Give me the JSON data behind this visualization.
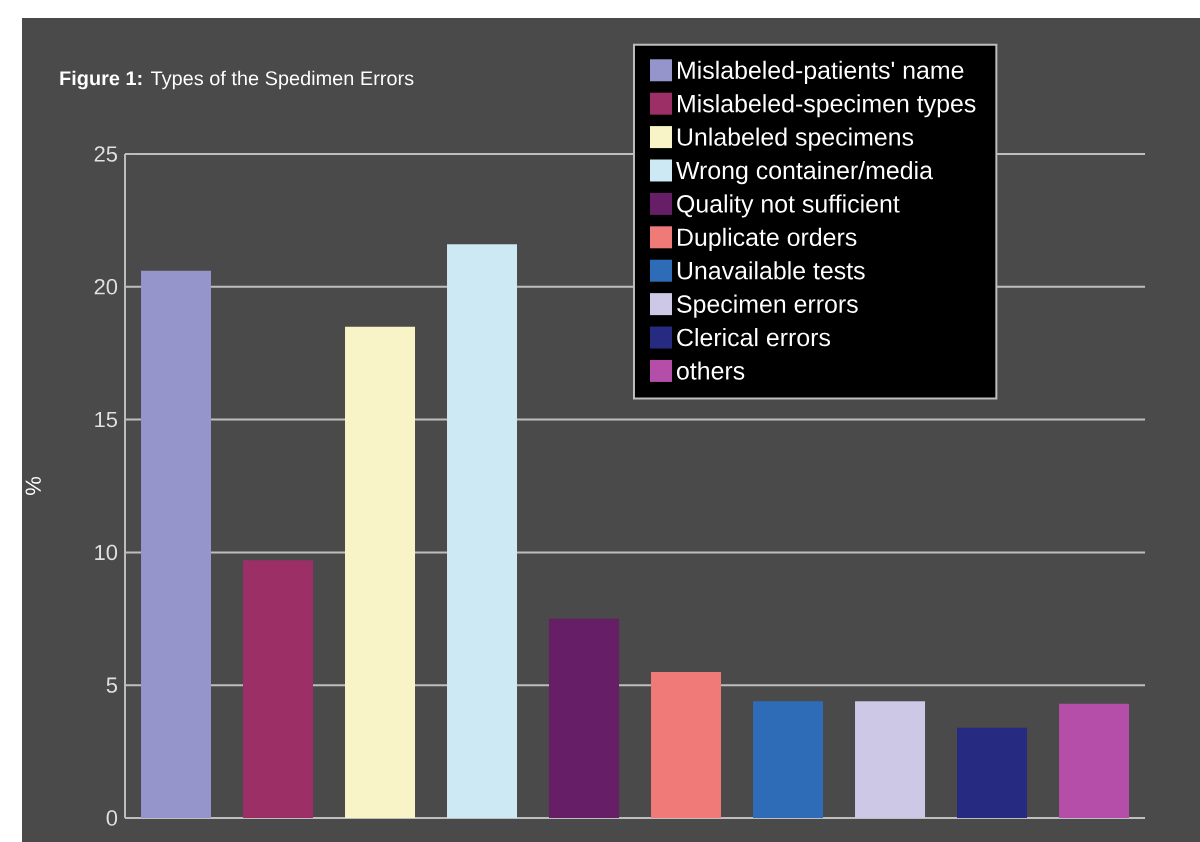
{
  "chart_data": {
    "type": "bar",
    "title": "**Figure 1:** Types of the Spedimen Errors",
    "ylabel": "%",
    "categories": [
      null,
      null,
      null,
      null,
      null,
      null,
      null,
      null,
      null,
      null
    ],
    "series": [
      {
        "name": "Mislabeled-patients' name",
        "color": "#9595cc",
        "values": [
          20.6,
          null,
          null,
          null,
          null,
          null,
          null,
          null,
          null,
          null
        ]
      },
      {
        "name": "Mislabeled-specimen types",
        "color": "#9c3066",
        "values": [
          null,
          9.7,
          null,
          null,
          null,
          null,
          null,
          null,
          null,
          null
        ]
      },
      {
        "name": "Unlabeled specimens",
        "color": "#f8f4c8",
        "values": [
          null,
          null,
          18.5,
          null,
          null,
          null,
          null,
          null,
          null,
          null
        ]
      },
      {
        "name": "Wrong container/media",
        "color": "#cce9f4",
        "values": [
          null,
          null,
          null,
          21.6,
          null,
          null,
          null,
          null,
          null,
          null
        ]
      },
      {
        "name": "Quality not sufficient",
        "color": "#661e66",
        "values": [
          null,
          null,
          null,
          null,
          7.5,
          null,
          null,
          null,
          null,
          null
        ]
      },
      {
        "name": "Duplicate orders",
        "color": "#f07a78",
        "values": [
          null,
          null,
          null,
          null,
          null,
          5.5,
          null,
          null,
          null,
          null
        ]
      },
      {
        "name": "Unavailable tests",
        "color": "#2f6cb8",
        "values": [
          null,
          null,
          null,
          null,
          null,
          null,
          4.4,
          null,
          null,
          null
        ]
      },
      {
        "name": "Specimen errors",
        "color": "#cdc8e6",
        "values": [
          null,
          null,
          null,
          null,
          null,
          null,
          null,
          4.4,
          null,
          null
        ]
      },
      {
        "name": "Clerical errors",
        "color": "#262a80",
        "values": [
          null,
          null,
          null,
          null,
          null,
          null,
          null,
          null,
          3.4,
          null
        ]
      },
      {
        "name": "others",
        "color": "#b44ea8",
        "values": [
          null,
          null,
          null,
          null,
          null,
          null,
          null,
          null,
          null,
          4.3
        ]
      }
    ],
    "ylim": [
      0,
      25
    ],
    "yticks": [
      0,
      5,
      10,
      15,
      20,
      25
    ],
    "grid": "y",
    "legend": "top right",
    "tick_labels": "y"
  }
}
